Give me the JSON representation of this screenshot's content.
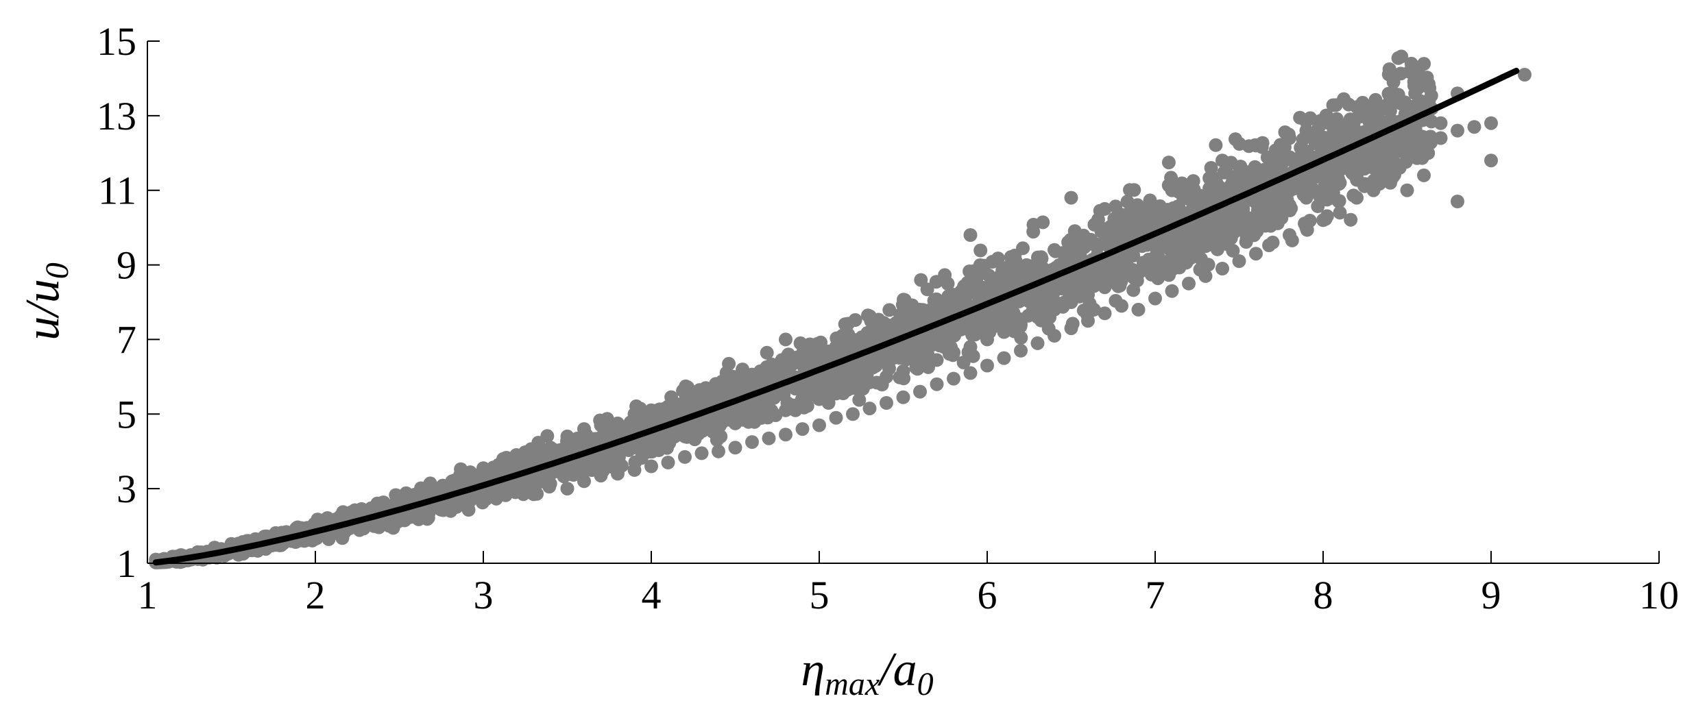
{
  "chart_data": {
    "type": "scatter",
    "title": "",
    "xlabel": {
      "main": "η",
      "sub": "max",
      "slash": "/",
      "main2": "a",
      "sub2": "0"
    },
    "ylabel": {
      "main": "u",
      "slash": "/",
      "main2": "u",
      "sub2": "0"
    },
    "xlim": [
      1,
      10
    ],
    "ylim": [
      1,
      15
    ],
    "x_ticks": [
      "1",
      "2",
      "3",
      "4",
      "5",
      "6",
      "7",
      "8",
      "9",
      "10"
    ],
    "y_ticks": [
      "1",
      "3",
      "5",
      "7",
      "9",
      "11",
      "13",
      "15"
    ],
    "grid": false,
    "legend": "none",
    "colors": {
      "points": "#808080",
      "fit_line": "#000000"
    },
    "scatter_points": [
      [
        1.05,
        1.1
      ],
      [
        1.1,
        1.12
      ],
      [
        1.15,
        1.18
      ],
      [
        1.2,
        1.22
      ],
      [
        1.3,
        1.3
      ],
      [
        1.4,
        1.42
      ],
      [
        1.5,
        1.52
      ],
      [
        1.6,
        1.6
      ],
      [
        1.7,
        1.72
      ],
      [
        1.8,
        1.82
      ],
      [
        1.9,
        1.95
      ],
      [
        2.0,
        2.05
      ],
      [
        2.1,
        2.12
      ],
      [
        2.2,
        2.22
      ],
      [
        2.3,
        2.35
      ],
      [
        2.4,
        2.45
      ],
      [
        2.5,
        2.55
      ],
      [
        2.6,
        2.68
      ],
      [
        2.7,
        2.78
      ],
      [
        2.8,
        2.9
      ],
      [
        2.9,
        3.0
      ],
      [
        3.0,
        3.05
      ],
      [
        3.0,
        3.55
      ],
      [
        3.1,
        3.15
      ],
      [
        3.1,
        2.85
      ],
      [
        3.2,
        3.3
      ],
      [
        3.2,
        3.85
      ],
      [
        3.3,
        3.35
      ],
      [
        3.3,
        2.85
      ],
      [
        3.4,
        3.45
      ],
      [
        3.4,
        4.1
      ],
      [
        3.5,
        3.6
      ],
      [
        3.5,
        3.0
      ],
      [
        3.5,
        4.4
      ],
      [
        3.6,
        3.7
      ],
      [
        3.6,
        3.2
      ],
      [
        3.6,
        4.6
      ],
      [
        3.7,
        3.85
      ],
      [
        3.7,
        3.35
      ],
      [
        3.7,
        4.7
      ],
      [
        3.8,
        3.95
      ],
      [
        3.8,
        3.4
      ],
      [
        3.8,
        4.75
      ],
      [
        3.9,
        4.1
      ],
      [
        3.9,
        3.5
      ],
      [
        3.9,
        5.0
      ],
      [
        4.0,
        4.25
      ],
      [
        4.0,
        3.6
      ],
      [
        4.0,
        5.1
      ],
      [
        4.1,
        4.3
      ],
      [
        4.1,
        3.7
      ],
      [
        4.1,
        5.2
      ],
      [
        4.2,
        4.45
      ],
      [
        4.2,
        3.85
      ],
      [
        4.2,
        5.35
      ],
      [
        4.3,
        4.55
      ],
      [
        4.3,
        3.95
      ],
      [
        4.3,
        5.45
      ],
      [
        4.4,
        4.65
      ],
      [
        4.4,
        4.0
      ],
      [
        4.4,
        5.6
      ],
      [
        4.5,
        4.75
      ],
      [
        4.5,
        4.1
      ],
      [
        4.5,
        5.75
      ],
      [
        4.6,
        4.9
      ],
      [
        4.6,
        4.25
      ],
      [
        4.6,
        5.9
      ],
      [
        4.7,
        5.0
      ],
      [
        4.7,
        4.35
      ],
      [
        4.7,
        6.1
      ],
      [
        4.8,
        5.1
      ],
      [
        4.8,
        4.45
      ],
      [
        4.8,
        7.0
      ],
      [
        4.9,
        5.2
      ],
      [
        4.9,
        4.6
      ],
      [
        4.9,
        6.4
      ],
      [
        5.0,
        5.4
      ],
      [
        5.0,
        4.7
      ],
      [
        5.0,
        6.6
      ],
      [
        5.1,
        5.55
      ],
      [
        5.1,
        4.9
      ],
      [
        5.1,
        6.8
      ],
      [
        5.2,
        5.7
      ],
      [
        5.2,
        5.0
      ],
      [
        5.2,
        7.0
      ],
      [
        5.3,
        5.85
      ],
      [
        5.3,
        5.15
      ],
      [
        5.3,
        7.2
      ],
      [
        5.4,
        6.0
      ],
      [
        5.4,
        5.3
      ],
      [
        5.4,
        7.4
      ],
      [
        5.5,
        6.15
      ],
      [
        5.5,
        5.45
      ],
      [
        5.5,
        7.6
      ],
      [
        5.6,
        6.3
      ],
      [
        5.6,
        5.6
      ],
      [
        5.6,
        7.8
      ],
      [
        5.7,
        6.45
      ],
      [
        5.7,
        5.8
      ],
      [
        5.7,
        8.0
      ],
      [
        5.8,
        6.65
      ],
      [
        5.8,
        5.95
      ],
      [
        5.8,
        8.2
      ],
      [
        5.9,
        6.8
      ],
      [
        5.9,
        6.1
      ],
      [
        5.9,
        9.8
      ],
      [
        6.0,
        7.0
      ],
      [
        6.0,
        6.3
      ],
      [
        6.0,
        8.4
      ],
      [
        6.1,
        7.2
      ],
      [
        6.1,
        6.5
      ],
      [
        6.1,
        8.6
      ],
      [
        6.2,
        7.4
      ],
      [
        6.2,
        6.7
      ],
      [
        6.2,
        8.8
      ],
      [
        6.3,
        7.6
      ],
      [
        6.3,
        6.9
      ],
      [
        6.3,
        9.0
      ],
      [
        6.4,
        7.8
      ],
      [
        6.4,
        7.1
      ],
      [
        6.4,
        9.4
      ],
      [
        6.5,
        8.0
      ],
      [
        6.5,
        7.3
      ],
      [
        6.5,
        10.8
      ],
      [
        6.6,
        8.2
      ],
      [
        6.6,
        7.5
      ],
      [
        6.6,
        9.6
      ],
      [
        6.7,
        8.4
      ],
      [
        6.7,
        7.7
      ],
      [
        6.7,
        10.5
      ],
      [
        6.8,
        8.6
      ],
      [
        6.8,
        7.9
      ],
      [
        6.8,
        9.8
      ],
      [
        6.9,
        8.8
      ],
      [
        6.9,
        7.8
      ],
      [
        6.9,
        10.2
      ],
      [
        7.0,
        9.0
      ],
      [
        7.0,
        8.1
      ],
      [
        7.0,
        10.0
      ],
      [
        7.1,
        9.2
      ],
      [
        7.1,
        8.3
      ],
      [
        7.1,
        11.0
      ],
      [
        7.2,
        9.4
      ],
      [
        7.2,
        8.5
      ],
      [
        7.2,
        10.4
      ],
      [
        7.3,
        9.6
      ],
      [
        7.3,
        8.7
      ],
      [
        7.3,
        10.8
      ],
      [
        7.4,
        9.8
      ],
      [
        7.4,
        8.9
      ],
      [
        7.4,
        11.8
      ],
      [
        7.5,
        10.0
      ],
      [
        7.5,
        9.1
      ],
      [
        7.5,
        11.4
      ],
      [
        7.6,
        10.2
      ],
      [
        7.6,
        9.3
      ],
      [
        7.6,
        12.2
      ],
      [
        7.7,
        10.4
      ],
      [
        7.7,
        9.6
      ],
      [
        7.7,
        11.8
      ],
      [
        7.8,
        10.6
      ],
      [
        7.8,
        9.8
      ],
      [
        7.8,
        12.4
      ],
      [
        7.9,
        10.8
      ],
      [
        7.9,
        10.0
      ],
      [
        7.9,
        12.6
      ],
      [
        8.0,
        11.0
      ],
      [
        8.0,
        10.2
      ],
      [
        8.0,
        12.2
      ],
      [
        8.1,
        11.2
      ],
      [
        8.1,
        10.4
      ],
      [
        8.1,
        12.0
      ],
      [
        8.2,
        11.4
      ],
      [
        8.2,
        10.8
      ],
      [
        8.2,
        11.6
      ],
      [
        8.3,
        11.6
      ],
      [
        8.3,
        11.0
      ],
      [
        8.4,
        11.8
      ],
      [
        8.4,
        11.2
      ],
      [
        8.5,
        12.0
      ],
      [
        8.5,
        11.0
      ],
      [
        8.5,
        12.8
      ],
      [
        8.6,
        12.2
      ],
      [
        8.6,
        11.4
      ],
      [
        8.7,
        12.4
      ],
      [
        8.7,
        12.8
      ],
      [
        8.8,
        12.6
      ],
      [
        8.8,
        10.7
      ],
      [
        8.8,
        13.6
      ],
      [
        8.9,
        12.7
      ],
      [
        9.0,
        11.8
      ],
      [
        9.0,
        12.8
      ],
      [
        9.2,
        14.1
      ]
    ],
    "fit_curve": {
      "x_min": 1.05,
      "x_max": 9.15,
      "a": 0.3,
      "b": 0.65,
      "c": 0.1
    }
  }
}
